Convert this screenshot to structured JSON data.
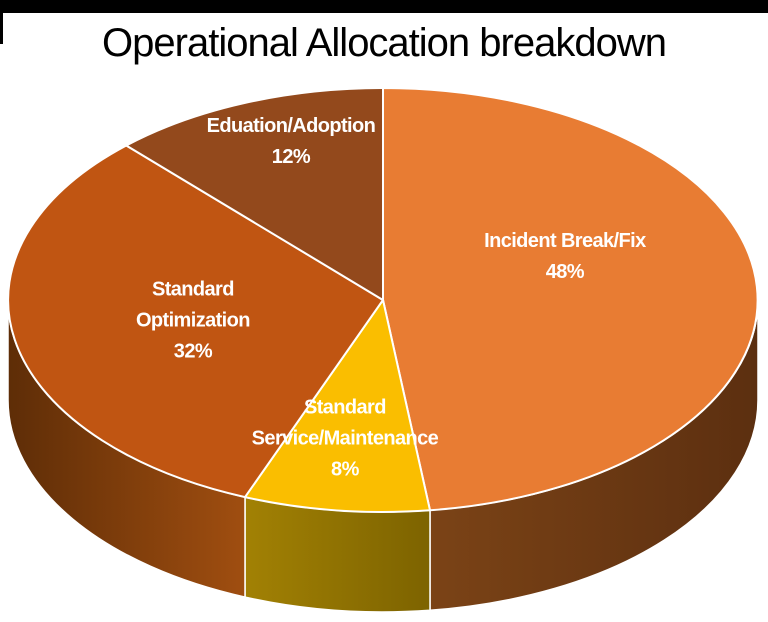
{
  "title": "Operational Allocation breakdown",
  "colors": {
    "background": "#FFFFFF",
    "top_bar": "#000000",
    "slice_border": "#FFFFFF",
    "label_text": "#FFFFFF",
    "title_text": "#000000"
  },
  "chart_data": {
    "type": "pie",
    "style": "3d",
    "title": "Operational Allocation breakdown",
    "direction": "clockwise",
    "start_angle_deg": 0,
    "unit": "%",
    "labels": [
      "Incident Break/Fix",
      "Standard Service/Maintenance",
      "Standard Optimization",
      "Eduation/Adoption"
    ],
    "values": [
      48,
      8,
      32,
      12
    ],
    "legend": "none",
    "segments": [
      {
        "label": "Incident Break/Fix",
        "slug": "incident-break-fix",
        "value": 48,
        "pct_label": "48%",
        "lines": [
          "Incident Break/Fix"
        ],
        "color": "#E87C33",
        "side_color_left": "#7B4316",
        "side_color_right": "#5C2F10"
      },
      {
        "label": "Standard Service/Maintenance",
        "slug": "standard-service-maintenance",
        "value": 8,
        "pct_label": "8%",
        "lines": [
          "Standard",
          "Service/Maintenance"
        ],
        "color": "#FABE00",
        "side_color_left": "#A28104",
        "side_color_right": "#7D6300"
      },
      {
        "label": "Standard Optimization",
        "slug": "standard-optimization",
        "value": 32,
        "pct_label": "32%",
        "lines": [
          "Standard",
          "Optimization"
        ],
        "color": "#C05512",
        "side_color_left": "#5E2D07",
        "side_color_right": "#A04E10"
      },
      {
        "label": "Eduation/Adoption",
        "slug": "eduation-adoption",
        "value": 12,
        "pct_label": "12%",
        "lines": [
          "Eduation/Adoption"
        ],
        "color": "#93491C",
        "side_color_left": "#93491C",
        "side_color_right": "#93491C"
      }
    ]
  }
}
